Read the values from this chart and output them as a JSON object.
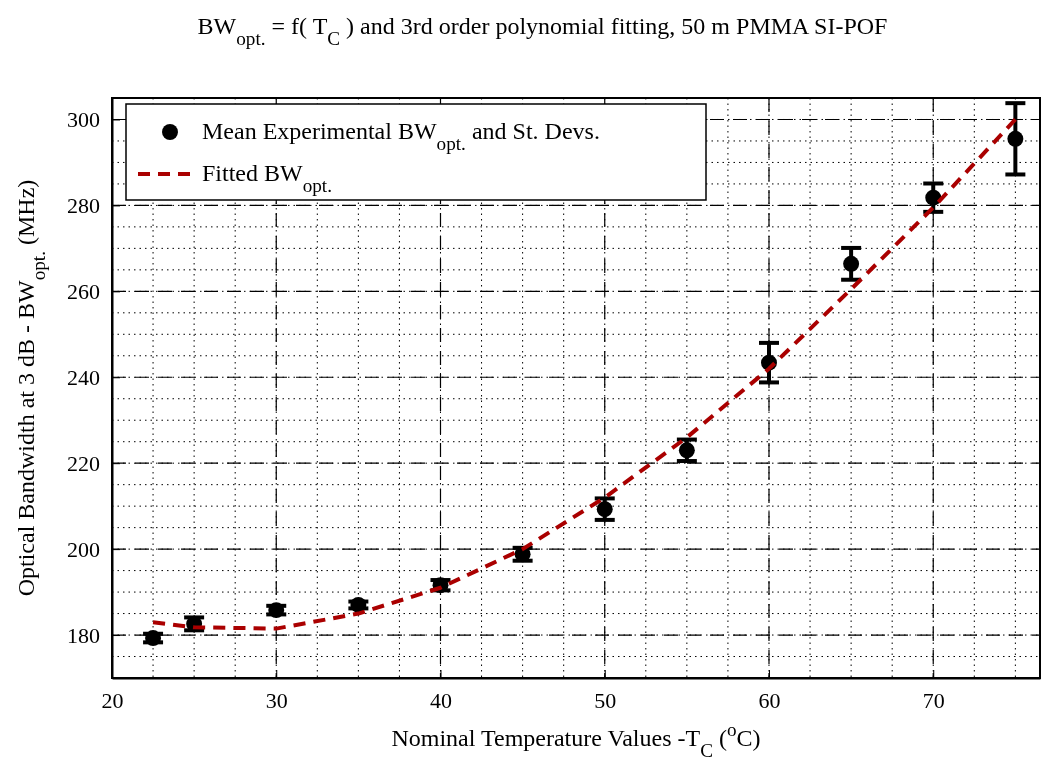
{
  "chart_data": {
    "type": "scatter",
    "title": "BW$_{opt.}$ = f( T$_{C}$ ) and 3rd order polynomial fitting, 50 m PMMA SI-POF",
    "xlabel": "Nominal Temperature Values  -T$_{C}$ ($^{o}$C)",
    "ylabel": "Optical Bandwidth at 3 dB  - BW$_{opt.}$  (MHz)",
    "xlim": [
      20,
      76.5
    ],
    "xticks": [
      20,
      30,
      40,
      50,
      60,
      70
    ],
    "ylim": [
      170,
      305
    ],
    "yticks": [
      180,
      200,
      220,
      240,
      260,
      280,
      300
    ],
    "grid": true,
    "legend": "top left",
    "series": [
      {
        "name": "Mean Experimental BW$_{opt.}$ and St. Devs.",
        "color": "#000000",
        "marker": "circle",
        "x": [
          22.5,
          25,
          30,
          35,
          40,
          45,
          50,
          55,
          60,
          65,
          70,
          75
        ],
        "values": [
          179.3,
          182.6,
          185.8,
          187,
          191.6,
          198.8,
          209.3,
          223,
          243.4,
          266.4,
          281.8,
          295.5
        ],
        "errors": [
          1,
          1.5,
          1,
          0.8,
          1.2,
          1.5,
          2.5,
          2.5,
          4.6,
          3.7,
          3.3,
          8.3
        ]
      },
      {
        "name": "Fitted BW$_{opt.}$",
        "type": "line",
        "color": "#aa0000",
        "line_style": "dashed",
        "marker": "none",
        "x": [
          22.5,
          25,
          30,
          35,
          40,
          45,
          50,
          55,
          60,
          65,
          70,
          75
        ],
        "values": [
          183,
          181.8,
          181.5,
          185,
          191,
          200,
          212,
          226,
          242,
          260.5,
          279.5,
          300
        ]
      }
    ]
  }
}
